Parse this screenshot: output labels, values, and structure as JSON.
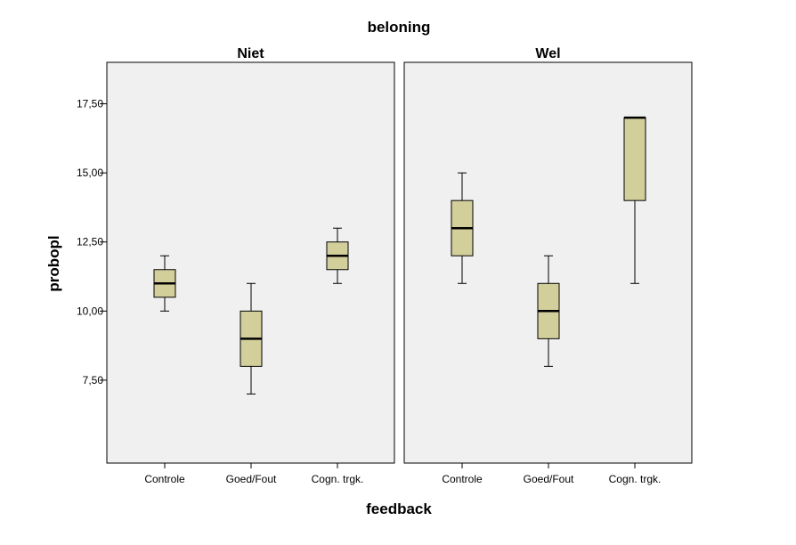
{
  "chart_data": {
    "type": "boxplot",
    "title": "beloning",
    "xlabel": "feedback",
    "ylabel": "probopl",
    "ylim": [
      4.5,
      19
    ],
    "yticks": [
      7.5,
      10,
      12.5,
      15,
      17.5
    ],
    "ytick_labels": [
      "7,50",
      "10,00",
      "12,50",
      "15,00",
      "17,50"
    ],
    "categories": [
      "Controle",
      "Goed/Fout",
      "Cogn. trgk."
    ],
    "box_color": "#d3cf9b",
    "panel_background": "#f0f0f0",
    "grid": false,
    "panels": [
      {
        "label": "Niet",
        "boxes": [
          {
            "category": "Controle",
            "min": 10,
            "q1": 10.5,
            "median": 11,
            "q3": 11.5,
            "max": 12
          },
          {
            "category": "Goed/Fout",
            "min": 7,
            "q1": 8,
            "median": 9,
            "q3": 10,
            "max": 11
          },
          {
            "category": "Cogn. trgk.",
            "min": 11,
            "q1": 11.5,
            "median": 12,
            "q3": 12.5,
            "max": 13
          }
        ]
      },
      {
        "label": "Wel",
        "boxes": [
          {
            "category": "Controle",
            "min": 11,
            "q1": 12,
            "median": 13,
            "q3": 14,
            "max": 15
          },
          {
            "category": "Goed/Fout",
            "min": 8,
            "q1": 9,
            "median": 10,
            "q3": 11,
            "max": 12
          },
          {
            "category": "Cogn. trgk.",
            "min": 11,
            "q1": 14,
            "median": 17,
            "q3": 17,
            "max": 17
          }
        ]
      }
    ]
  }
}
